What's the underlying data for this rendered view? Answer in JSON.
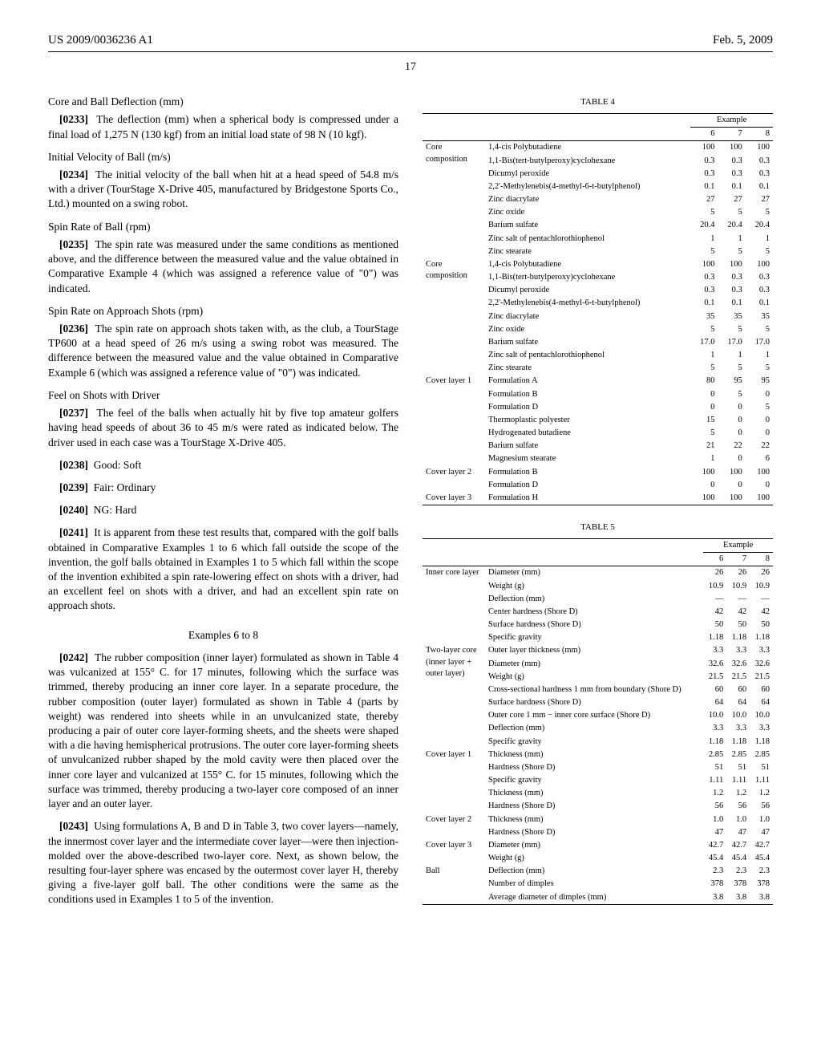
{
  "header": {
    "left": "US 2009/0036236 A1",
    "right": "Feb. 5, 2009",
    "page_num": "17"
  },
  "left": {
    "h_core_ball": "Core and Ball Deflection (mm)",
    "p0233_num": "[0233]",
    "p0233": "The deflection (mm) when a spherical body is compressed under a final load of 1,275 N (130 kgf) from an initial load state of 98 N (10 kgf).",
    "h_iv": "Initial Velocity of Ball (m/s)",
    "p0234_num": "[0234]",
    "p0234": "The initial velocity of the ball when hit at a head speed of 54.8 m/s with a driver (TourStage X-Drive 405, manufactured by Bridgestone Sports Co., Ltd.) mounted on a swing robot.",
    "h_spin": "Spin Rate of Ball (rpm)",
    "p0235_num": "[0235]",
    "p0235": "The spin rate was measured under the same conditions as mentioned above, and the difference between the measured value and the value obtained in Comparative Example 4 (which was assigned a reference value of \"0\") was indicated.",
    "h_spin_app": "Spin Rate on Approach Shots (rpm)",
    "p0236_num": "[0236]",
    "p0236": "The spin rate on approach shots taken with, as the club, a TourStage TP600 at a head speed of 26 m/s using a swing robot was measured. The difference between the measured value and the value obtained in Comparative Example 6 (which was assigned a reference value of \"0\") was indicated.",
    "h_feel": "Feel on Shots with Driver",
    "p0237_num": "[0237]",
    "p0237": "The feel of the balls when actually hit by five top amateur golfers having head speeds of about 36 to 45 m/s were rated as indicated below. The driver used in each case was a TourStage X-Drive 405.",
    "p0238_num": "[0238]",
    "p0238": "Good: Soft",
    "p0239_num": "[0239]",
    "p0239": "Fair: Ordinary",
    "p0240_num": "[0240]",
    "p0240": "NG: Hard",
    "p0241_num": "[0241]",
    "p0241": "It is apparent from these test results that, compared with the golf balls obtained in Comparative Examples 1 to 6 which fall outside the scope of the invention, the golf balls obtained in Examples 1 to 5 which fall within the scope of the invention exhibited a spin rate-lowering effect on shots with a driver, had an excellent feel on shots with a driver, and had an excellent spin rate on approach shots.",
    "h_ex68": "Examples 6 to 8",
    "p0242_num": "[0242]",
    "p0242": "The rubber composition (inner layer) formulated as shown in Table 4 was vulcanized at 155° C. for 17 minutes, following which the surface was trimmed, thereby producing an inner core layer. In a separate procedure, the rubber composition (outer layer) formulated as shown in Table 4 (parts by weight) was rendered into sheets while in an unvulcanized state, thereby producing a pair of outer core layer-forming sheets, and the sheets were shaped with a die having hemispherical protrusions. The outer core layer-forming sheets of unvulcanized rubber shaped by the mold cavity were then placed over the inner core layer and vulcanized at 155° C. for 15 minutes, following which the surface was trimmed, thereby producing a two-layer core composed of an inner layer and an outer layer.",
    "p0243_num": "[0243]",
    "p0243": "Using formulations A, B and D in Table 3, two cover layers—namely, the innermost cover layer and the intermediate cover layer—were then injection-molded over the above-described two-layer core. Next, as shown below, the resulting four-layer sphere was encased by the outermost cover layer H, thereby giving a five-layer golf ball. The other conditions were the same as the conditions used in Examples 1 to 5 of the invention."
  },
  "table4": {
    "title": "TABLE 4",
    "example_label": "Example",
    "cols": [
      "6",
      "7",
      "8"
    ],
    "sections": [
      {
        "section": "Core composition",
        "rows": [
          [
            "1,4-cis Polybutadiene",
            "100",
            "100",
            "100"
          ],
          [
            "1,1-Bis(tert-butylperoxy)cyclohexane",
            "0.3",
            "0.3",
            "0.3"
          ],
          [
            "Dicumyl peroxide",
            "0.3",
            "0.3",
            "0.3"
          ],
          [
            "2,2'-Methylenebis(4-methyl-6-t-butylphenol)",
            "0.1",
            "0.1",
            "0.1"
          ],
          [
            "Zinc diacrylate",
            "27",
            "27",
            "27"
          ],
          [
            "Zinc oxide",
            "5",
            "5",
            "5"
          ],
          [
            "Barium sulfate",
            "20.4",
            "20.4",
            "20.4"
          ],
          [
            "Zinc salt of pentachlorothiophenol",
            "1",
            "1",
            "1"
          ],
          [
            "Zinc stearate",
            "5",
            "5",
            "5"
          ]
        ]
      },
      {
        "section": "Core composition",
        "rows": [
          [
            "1,4-cis Polybutadiene",
            "100",
            "100",
            "100"
          ],
          [
            "1,1-Bis(tert-butylperoxy)cyclohexane",
            "0.3",
            "0.3",
            "0.3"
          ],
          [
            "Dicumyl peroxide",
            "0.3",
            "0.3",
            "0.3"
          ],
          [
            "2,2'-Methylenebis(4-methyl-6-t-butylphenol)",
            "0.1",
            "0.1",
            "0.1"
          ],
          [
            "Zinc diacrylate",
            "35",
            "35",
            "35"
          ],
          [
            "Zinc oxide",
            "5",
            "5",
            "5"
          ],
          [
            "Barium sulfate",
            "17.0",
            "17.0",
            "17.0"
          ],
          [
            "Zinc salt of pentachlorothiophenol",
            "1",
            "1",
            "1"
          ],
          [
            "Zinc stearate",
            "5",
            "5",
            "5"
          ]
        ]
      },
      {
        "section": "Cover layer 1",
        "rows": [
          [
            "Formulation A",
            "80",
            "95",
            "95"
          ],
          [
            "Formulation B",
            "0",
            "5",
            "0"
          ],
          [
            "Formulation D",
            "0",
            "0",
            "5"
          ],
          [
            "Thermoplastic polyester",
            "15",
            "0",
            "0"
          ],
          [
            "Hydrogenated butadiene",
            "5",
            "0",
            "0"
          ],
          [
            "Barium sulfate",
            "21",
            "22",
            "22"
          ],
          [
            "Magnesium stearate",
            "1",
            "0",
            "6"
          ]
        ]
      },
      {
        "section": "Cover layer 2",
        "rows": [
          [
            "Formulation B",
            "100",
            "100",
            "100"
          ],
          [
            "Formulation D",
            "0",
            "0",
            "0"
          ]
        ]
      },
      {
        "section": "Cover layer 3",
        "rows": [
          [
            "Formulation H",
            "100",
            "100",
            "100"
          ]
        ]
      }
    ]
  },
  "table5": {
    "title": "TABLE 5",
    "example_label": "Example",
    "cols": [
      "6",
      "7",
      "8"
    ],
    "sections": [
      {
        "section": "Inner core layer",
        "rows": [
          [
            "Diameter (mm)",
            "26",
            "26",
            "26"
          ],
          [
            "Weight (g)",
            "10.9",
            "10.9",
            "10.9"
          ],
          [
            "Deflection (mm)",
            "—",
            "—",
            "—"
          ],
          [
            "Center hardness (Shore D)",
            "42",
            "42",
            "42"
          ],
          [
            "Surface hardness (Shore D)",
            "50",
            "50",
            "50"
          ],
          [
            "Specific gravity",
            "1.18",
            "1.18",
            "1.18"
          ]
        ]
      },
      {
        "section": "Two-layer core (inner layer + outer layer)",
        "rows": [
          [
            "Outer layer thickness (mm)",
            "3.3",
            "3.3",
            "3.3"
          ],
          [
            "Diameter (mm)",
            "32.6",
            "32.6",
            "32.6"
          ],
          [
            "Weight (g)",
            "21.5",
            "21.5",
            "21.5"
          ],
          [
            "Cross-sectional hardness 1 mm from boundary (Shore D)",
            "60",
            "60",
            "60"
          ],
          [
            "Surface hardness (Shore D)",
            "64",
            "64",
            "64"
          ],
          [
            "Outer core 1 mm − inner core surface (Shore D)",
            "10.0",
            "10.0",
            "10.0"
          ],
          [
            "Deflection (mm)",
            "3.3",
            "3.3",
            "3.3"
          ],
          [
            "Specific gravity",
            "1.18",
            "1.18",
            "1.18"
          ]
        ]
      },
      {
        "section": "Cover layer 1",
        "rows": [
          [
            "Thickness (mm)",
            "2.85",
            "2.85",
            "2.85"
          ],
          [
            "Hardness (Shore D)",
            "51",
            "51",
            "51"
          ],
          [
            "Specific gravity",
            "1.11",
            "1.11",
            "1.11"
          ],
          [
            "Thickness (mm)",
            "1.2",
            "1.2",
            "1.2"
          ],
          [
            "Hardness (Shore D)",
            "56",
            "56",
            "56"
          ]
        ]
      },
      {
        "section": "Cover layer 2",
        "rows": [
          [
            "Thickness (mm)",
            "1.0",
            "1.0",
            "1.0"
          ],
          [
            "Hardness (Shore D)",
            "47",
            "47",
            "47"
          ]
        ]
      },
      {
        "section": "Cover layer 3",
        "rows": [
          [
            "Diameter (mm)",
            "42.7",
            "42.7",
            "42.7"
          ],
          [
            "Weight (g)",
            "45.4",
            "45.4",
            "45.4"
          ]
        ]
      },
      {
        "section": "Ball",
        "rows": [
          [
            "Deflection (mm)",
            "2.3",
            "2.3",
            "2.3"
          ],
          [
            "Number of dimples",
            "378",
            "378",
            "378"
          ],
          [
            "Average diameter of dimples (mm)",
            "3.8",
            "3.8",
            "3.8"
          ]
        ]
      }
    ]
  }
}
